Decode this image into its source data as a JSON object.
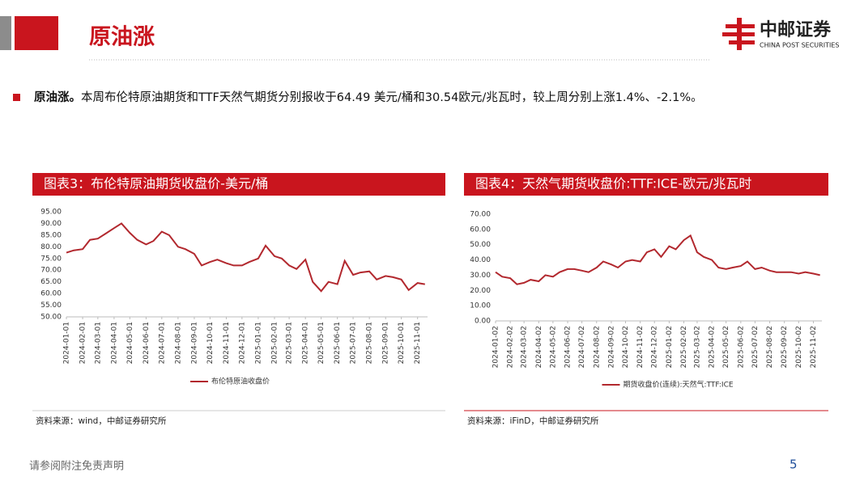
{
  "header": {
    "title": "原油涨",
    "logo_cn": "中邮证券",
    "logo_en": "CHINA POST SECURITIES"
  },
  "bullet": {
    "lead": "原油涨。",
    "text": "本周布伦特原油期货和TTF天然气期货分别报收于64.49 美元/桶和30.54欧元/兆瓦时，较上周分别上涨1.4%、-2.1%。"
  },
  "footer": {
    "disclaimer": "请参阅附注免责声明",
    "page": "5"
  },
  "chart_data": [
    {
      "type": "line",
      "title": "图表3：布伦特原油期货收盘价-美元/桶",
      "source": "资料来源：wind，中邮证券研究所",
      "xlim": [
        "2024-01-01",
        "2025-11-20"
      ],
      "xticks": [
        "2024-01-01",
        "2024-02-01",
        "2024-03-01",
        "2024-04-01",
        "2024-05-01",
        "2024-06-01",
        "2024-07-01",
        "2024-08-01",
        "2024-09-01",
        "2024-10-01",
        "2024-11-01",
        "2024-12-01",
        "2025-01-01",
        "2025-02-01",
        "2025-03-01",
        "2025-04-01",
        "2025-05-01",
        "2025-06-01",
        "2025-07-01",
        "2025-08-01",
        "2025-09-01",
        "2025-10-01",
        "2025-11-01"
      ],
      "ylim": [
        50,
        95
      ],
      "yticks": [
        {
          "value": 50,
          "label": "50.00"
        },
        {
          "value": 55,
          "label": "55.00"
        },
        {
          "value": 60,
          "label": "60.00"
        },
        {
          "value": 65,
          "label": "65.00"
        },
        {
          "value": 70,
          "label": "70.00"
        },
        {
          "value": 75,
          "label": "75.00"
        },
        {
          "value": 80,
          "label": "80.00"
        },
        {
          "value": 85,
          "label": "85.00"
        },
        {
          "value": 90,
          "label": "90.00"
        },
        {
          "value": 95,
          "label": "95.00"
        }
      ],
      "x": [
        "2024-01-01",
        "2024-01-15",
        "2024-02-01",
        "2024-02-15",
        "2024-03-01",
        "2024-03-15",
        "2024-04-01",
        "2024-04-15",
        "2024-05-01",
        "2024-05-15",
        "2024-06-01",
        "2024-06-15",
        "2024-07-01",
        "2024-07-15",
        "2024-08-01",
        "2024-08-15",
        "2024-09-01",
        "2024-09-15",
        "2024-10-01",
        "2024-10-15",
        "2024-11-01",
        "2024-11-15",
        "2024-12-01",
        "2024-12-15",
        "2025-01-01",
        "2025-01-15",
        "2025-02-01",
        "2025-02-15",
        "2025-03-01",
        "2025-03-15",
        "2025-04-01",
        "2025-04-15",
        "2025-05-01",
        "2025-05-15",
        "2025-06-01",
        "2025-06-15",
        "2025-07-01",
        "2025-07-15",
        "2025-08-01",
        "2025-08-15",
        "2025-09-01",
        "2025-09-15",
        "2025-10-01",
        "2025-10-15",
        "2025-11-01",
        "2025-11-15"
      ],
      "series": [
        {
          "name": "布伦特原油收盘价",
          "color": "#b2282e",
          "values": [
            77.5,
            78.5,
            79,
            83,
            83.5,
            85.5,
            88,
            90,
            86,
            83,
            81,
            82.5,
            86.5,
            85,
            80,
            79,
            77,
            72,
            73.5,
            74.5,
            73,
            72,
            72,
            73.5,
            75,
            80.5,
            76,
            75,
            72,
            70.5,
            74.5,
            65,
            61,
            65,
            64,
            74,
            68,
            69,
            69.5,
            66,
            67.5,
            67,
            66,
            61.5,
            64.5,
            64
          ]
        }
      ]
    },
    {
      "type": "line",
      "title": "图表4：天然气期货收盘价:TTF:ICE-欧元/兆瓦时",
      "source": "资料来源：iFinD，中邮证券研究所",
      "xlim": [
        "2024-01-02",
        "2025-11-20"
      ],
      "xticks": [
        "2024-01-02",
        "2024-02-02",
        "2024-03-02",
        "2024-04-02",
        "2024-05-02",
        "2024-06-02",
        "2024-07-02",
        "2024-08-02",
        "2024-09-02",
        "2024-10-02",
        "2024-11-02",
        "2024-12-02",
        "2025-01-02",
        "2025-02-02",
        "2025-03-02",
        "2025-04-02",
        "2025-05-02",
        "2025-06-02",
        "2025-07-02",
        "2025-08-02",
        "2025-09-02",
        "2025-10-02",
        "2025-11-02"
      ],
      "ylim": [
        0,
        70
      ],
      "yticks": [
        {
          "value": 0,
          "label": "0.00"
        },
        {
          "value": 10,
          "label": "10.00"
        },
        {
          "value": 20,
          "label": "20.00"
        },
        {
          "value": 30,
          "label": "30.00"
        },
        {
          "value": 40,
          "label": "40.00"
        },
        {
          "value": 50,
          "label": "50.00"
        },
        {
          "value": 60,
          "label": "60.00"
        },
        {
          "value": 70,
          "label": "70.00"
        }
      ],
      "x": [
        "2024-01-02",
        "2024-01-16",
        "2024-02-02",
        "2024-02-16",
        "2024-03-02",
        "2024-03-16",
        "2024-04-02",
        "2024-04-16",
        "2024-05-02",
        "2024-05-16",
        "2024-06-02",
        "2024-06-16",
        "2024-07-02",
        "2024-07-16",
        "2024-08-02",
        "2024-08-16",
        "2024-09-02",
        "2024-09-16",
        "2024-10-02",
        "2024-10-16",
        "2024-11-02",
        "2024-11-16",
        "2024-12-02",
        "2024-12-16",
        "2025-01-02",
        "2025-01-16",
        "2025-02-02",
        "2025-02-16",
        "2025-03-02",
        "2025-03-16",
        "2025-04-02",
        "2025-04-16",
        "2025-05-02",
        "2025-05-16",
        "2025-06-02",
        "2025-06-16",
        "2025-07-02",
        "2025-07-16",
        "2025-08-02",
        "2025-08-16",
        "2025-09-02",
        "2025-09-16",
        "2025-10-02",
        "2025-10-16",
        "2025-11-02",
        "2025-11-16"
      ],
      "series": [
        {
          "name": "期货收盘价(连续):天然气:TTF:ICE",
          "color": "#b2282e",
          "values": [
            32,
            29,
            28,
            24,
            25,
            27,
            26,
            30,
            29,
            32,
            34,
            34,
            33,
            32,
            35,
            39,
            37,
            35,
            39,
            40,
            39,
            45,
            47,
            42,
            49,
            47,
            53,
            56,
            45,
            42,
            40,
            35,
            34,
            35,
            36,
            39,
            34,
            35,
            33,
            32,
            32,
            32,
            31,
            32,
            31,
            30
          ]
        }
      ]
    }
  ]
}
